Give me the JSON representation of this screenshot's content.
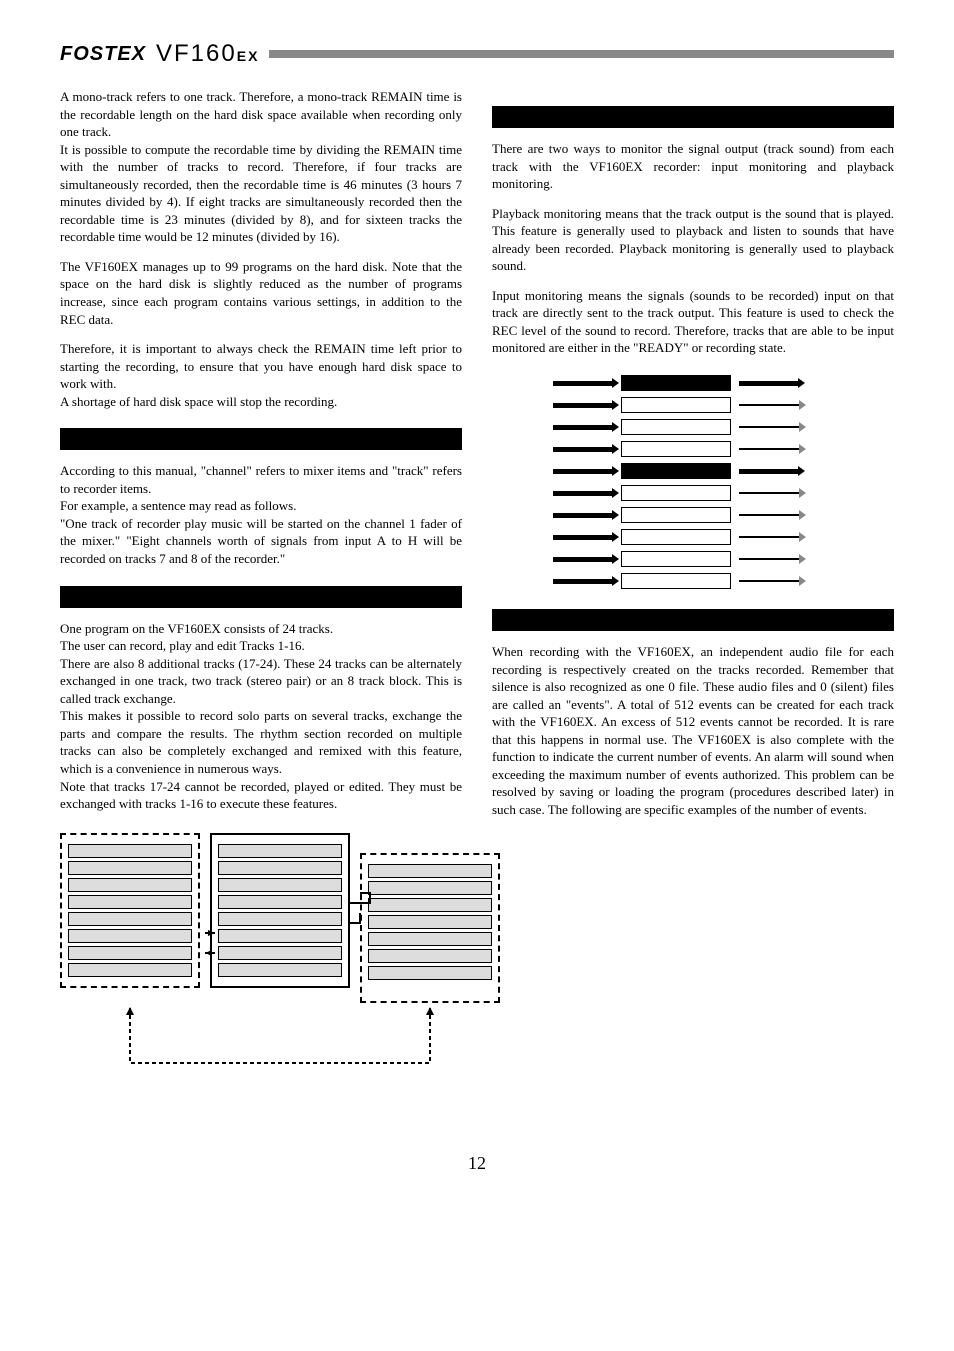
{
  "header": {
    "logo": "FOSTEX",
    "model_prefix": "VF160",
    "model_suffix": "EX"
  },
  "left_col": {
    "p1": "A mono-track refers to one track.  Therefore, a mono-track REMAIN time is the recordable length on the hard disk space available when recording only one track.",
    "p2": "It is possible to compute the recordable time by dividing the REMAIN time with the number of tracks to record.  Therefore, if four tracks are simultaneously recorded, then the recordable time is 46 minutes (3 hours 7 minutes divided by 4).  If eight tracks are simultaneously recorded then the recordable time is 23 minutes (divided by 8), and for sixteen tracks the recordable time would be 12 minutes (divided by 16).",
    "p3": "The VF160EX manages up to 99 programs on the hard disk.  Note that the space on the hard disk is slightly reduced as the number of programs increase, since each program contains various settings, in addition to the REC data.",
    "p4": "Therefore, it is important to always check the REMAIN time left prior to starting the recording, to ensure that you have enough hard disk space to work with.",
    "p5": "A shortage of hard disk space will stop the recording.",
    "sec1_title": "",
    "sec1_p1": "According to this manual, \"channel\" refers to mixer items and \"track\" refers to recorder items.",
    "sec1_p2": "For example, a sentence may read as follows.",
    "sec1_p3": "\"One track of recorder play music will be started on the channel 1 fader of the mixer.\"  \"Eight channels worth of signals from input A to H will be recorded on tracks 7 and 8 of the recorder.\"",
    "sec2_title": "",
    "sec2_p1": "One program on the VF160EX consists of 24 tracks.",
    "sec2_p2": "The user can record, play and edit Tracks 1-16.",
    "sec2_p3": "There are also 8 additional tracks (17-24).  These 24 tracks can be alternately exchanged in one track, two track (stereo pair) or an 8 track block.  This is called track exchange.",
    "sec2_p4": "This makes it possible to record solo parts on several tracks, exchange the parts and compare the results.  The rhythm section recorded on multiple tracks can also be completely exchanged and remixed with this feature, which is a convenience in numerous ways.",
    "sec2_p5": "Note that tracks 17-24 cannot be recorded, played or edited.  They must be exchanged with tracks 1-16 to execute these features."
  },
  "right_col": {
    "sec1_title": "",
    "sec1_p1": "There are two ways to monitor the signal output (track sound) from each track with the VF160EX recorder: input monitoring and playback monitoring.",
    "sec1_p2": "Playback monitoring means that the track output is the sound that is played.  This feature is generally used to playback and listen to sounds that have already been recorded.  Playback monitoring is generally used to playback sound.",
    "sec1_p3": "Input monitoring means the signals (sounds to be recorded) input on that track are directly sent to the track output.  This feature is used to check the REC level of the sound to record.  Therefore, tracks that are able to be input monitored are either in the \"READY\" or recording state.",
    "sec2_title": "",
    "sec2_p1": "When recording with the VF160EX, an independent audio file for each recording is respectively created on the tracks recorded.  Remember that silence is also recognized as one 0 file.  These audio files and 0 (silent) files are called an \"events\".  A total of 512 events can be created for each track with the VF160EX.  An excess of 512 events cannot be recorded.  It is rare that this happens in normal use.  The VF160EX is also complete with the function to indicate the current number of events.  An alarm will sound when exceeding the maximum number of events authorized.  This problem can be resolved by saving or loading the program (procedures described later) in such case.  The following are specific examples of the number of events."
  },
  "monitor_diagram": {
    "dark_rows": [
      0,
      4
    ],
    "total_rows": 10
  },
  "page_number": "12"
}
